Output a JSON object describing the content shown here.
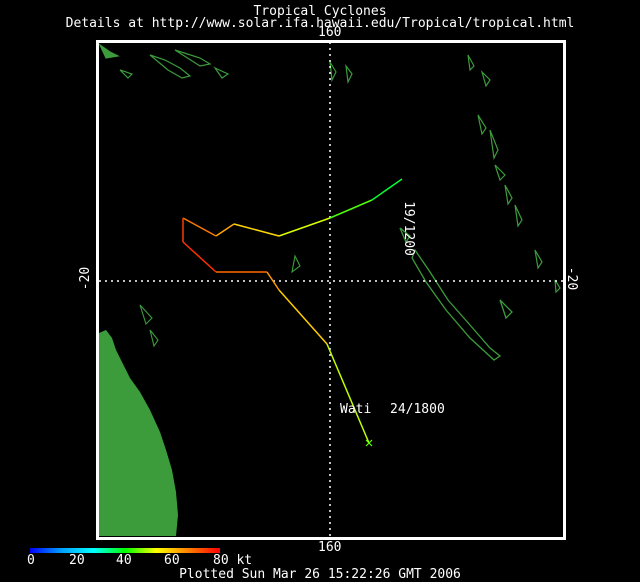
{
  "header": {
    "title": "Tropical Cyclones",
    "details": "Details at http://www.solar.ifa.hawaii.edu/Tropical/tropical.html"
  },
  "axes": {
    "lon_top": "160",
    "lon_bottom": "160",
    "lat_left": "-20",
    "lat_right": "-20"
  },
  "storm": {
    "name": "Wati",
    "end_label": "24/1800",
    "start_label": "19/1200",
    "track": [
      {
        "lon": 162.4,
        "lat": -16.6,
        "kt": 35
      },
      {
        "lon": 161.4,
        "lat": -17.3,
        "kt": 40
      },
      {
        "lon": 160.0,
        "lat": -17.9,
        "kt": 48
      },
      {
        "lon": 158.3,
        "lat": -18.5,
        "kt": 55
      },
      {
        "lon": 156.8,
        "lat": -18.1,
        "kt": 60
      },
      {
        "lon": 156.2,
        "lat": -18.5,
        "kt": 65
      },
      {
        "lon": 155.1,
        "lat": -17.9,
        "kt": 70
      },
      {
        "lon": 155.1,
        "lat": -18.7,
        "kt": 78
      },
      {
        "lon": 156.2,
        "lat": -19.7,
        "kt": 72
      },
      {
        "lon": 157.9,
        "lat": -19.7,
        "kt": 66
      },
      {
        "lon": 158.3,
        "lat": -20.3,
        "kt": 62
      },
      {
        "lon": 159.9,
        "lat": -22.1,
        "kt": 55
      },
      {
        "lon": 161.3,
        "lat": -25.4,
        "kt": 45
      }
    ]
  },
  "legend": {
    "ticks": [
      "0",
      "20",
      "40",
      "60",
      "80 kt"
    ],
    "range_kt": [
      0,
      80
    ],
    "colors": [
      "#0000ff",
      "#00a0ff",
      "#00ffff",
      "#00ff00",
      "#ffff00",
      "#ff8000",
      "#ff0000"
    ]
  },
  "footer": {
    "plotted": "Plotted Sun Mar 26 15:22:26 GMT 2006"
  },
  "colors": {
    "land": "#3c9c3c",
    "frame": "#ffffff",
    "background": "#000000",
    "grid": "#ffffff"
  }
}
